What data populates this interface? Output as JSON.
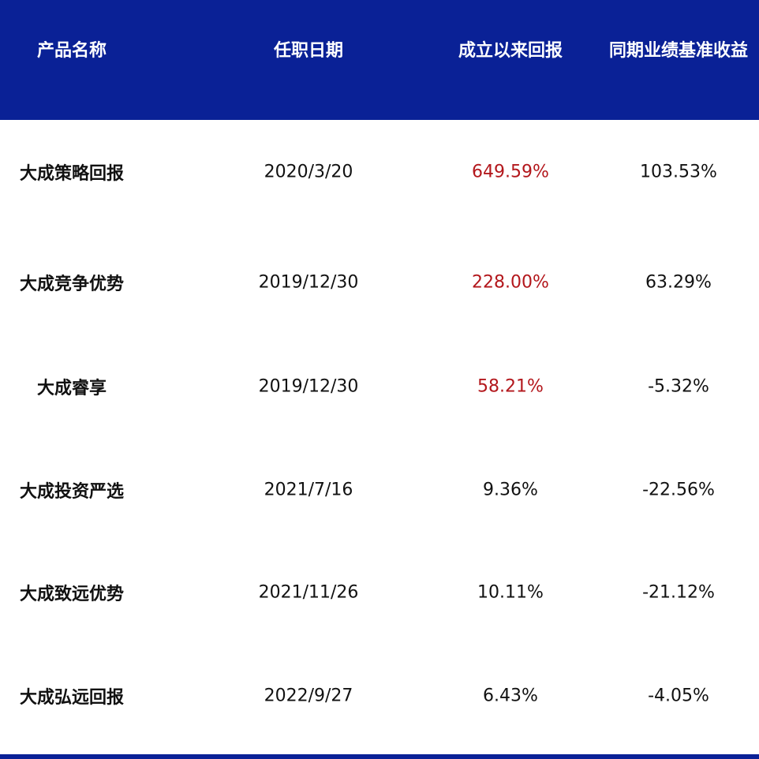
{
  "table": {
    "header": [
      "产品名称",
      "任职日期",
      "成立以来回报",
      "同期业绩基准收益"
    ],
    "header_color": "#0a2196",
    "rows": [
      {
        "cells": [
          "大成策略回报",
          "2020/3/20",
          "649.59%",
          "103.53%"
        ],
        "return_color": "#b3171c"
      },
      {
        "cells": [
          "大成竞争优势",
          "2019/12/30",
          "228.00%",
          "63.29%"
        ],
        "return_color": "#b3171c"
      },
      {
        "cells": [
          "大成睿享",
          "2019/12/30",
          "58.21%",
          "-5.32%"
        ],
        "return_color": "#b3171c"
      },
      {
        "cells": [
          "大成投资严选",
          "2021/7/16",
          "9.36%",
          "-22.56%"
        ],
        "return_color": "#111111"
      },
      {
        "cells": [
          "大成致远优势",
          "2021/11/26",
          "10.11%",
          "-21.12%"
        ],
        "return_color": "#111111"
      },
      {
        "cells": [
          "大成弘远回报",
          "2022/9/27",
          "6.43%",
          "-4.05%"
        ],
        "return_color": "#111111"
      }
    ]
  }
}
